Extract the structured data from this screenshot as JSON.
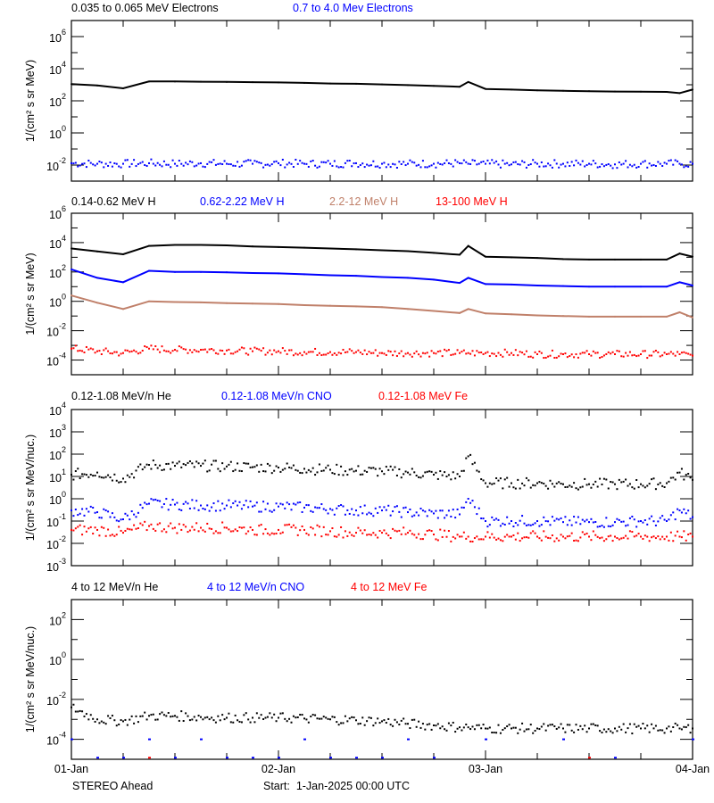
{
  "colors": {
    "black": "#000000",
    "blue": "#0000ff",
    "brown": "#c0806a",
    "red": "#ff0000"
  },
  "footer": {
    "spacecraft": "STEREO Ahead",
    "start": "Start:  1-Jan-2025 00:00 UTC"
  },
  "x_tick_labels": [
    "01-Jan",
    "02-Jan",
    "03-Jan",
    "04-Jan"
  ],
  "chart_data": [
    {
      "type": "line",
      "ylabel": "1/(cm² s sr MeV)",
      "yscale": "log",
      "ylim": [
        0.001,
        10000000.0
      ],
      "ytick_exponents": [
        6,
        4,
        2,
        0,
        -2
      ],
      "x": [
        "01-Jan 00:00",
        "01-Jan 03:00",
        "01-Jan 06:00",
        "01-Jan 09:00",
        "01-Jan 12:00",
        "01-Jan 15:00",
        "01-Jan 18:00",
        "01-Jan 21:00",
        "02-Jan 00:00",
        "02-Jan 03:00",
        "02-Jan 06:00",
        "02-Jan 09:00",
        "02-Jan 12:00",
        "02-Jan 15:00",
        "02-Jan 18:00",
        "02-Jan 21:00",
        "02-Jan 22:00",
        "03-Jan 00:00",
        "03-Jan 03:00",
        "03-Jan 06:00",
        "03-Jan 09:00",
        "03-Jan 12:00",
        "03-Jan 15:00",
        "03-Jan 18:00",
        "03-Jan 21:00",
        "03-Jan 22:30",
        "04-Jan 00:00"
      ],
      "series": [
        {
          "name": "0.035 to 0.065 MeV Electrons",
          "color": "black",
          "style": "line",
          "values": [
            1100,
            900,
            600,
            1600,
            1600,
            1550,
            1500,
            1450,
            1400,
            1300,
            1200,
            1150,
            1050,
            950,
            850,
            750,
            1500,
            550,
            500,
            450,
            420,
            400,
            380,
            370,
            360,
            300,
            500
          ]
        },
        {
          "name": "0.7 to 4.0 Mev Electrons",
          "color": "blue",
          "style": "dots",
          "values": [
            0.013,
            0.012,
            0.012,
            0.013,
            0.012,
            0.013,
            0.012,
            0.012,
            0.013,
            0.012,
            0.012,
            0.013,
            0.012,
            0.012,
            0.012,
            0.013,
            0.012,
            0.012,
            0.011,
            0.012,
            0.012,
            0.012,
            0.011,
            0.012,
            0.012,
            0.012,
            0.012
          ]
        }
      ]
    },
    {
      "type": "line",
      "ylabel": "1/(cm² s sr MeV)",
      "yscale": "log",
      "ylim": [
        1e-05,
        1000000.0
      ],
      "ytick_exponents": [
        6,
        4,
        2,
        0,
        -2,
        -4
      ],
      "x": [
        "01-Jan 00:00",
        "01-Jan 03:00",
        "01-Jan 06:00",
        "01-Jan 09:00",
        "01-Jan 12:00",
        "01-Jan 15:00",
        "01-Jan 18:00",
        "01-Jan 21:00",
        "02-Jan 00:00",
        "02-Jan 03:00",
        "02-Jan 06:00",
        "02-Jan 09:00",
        "02-Jan 12:00",
        "02-Jan 15:00",
        "02-Jan 18:00",
        "02-Jan 21:00",
        "02-Jan 22:00",
        "03-Jan 00:00",
        "03-Jan 03:00",
        "03-Jan 06:00",
        "03-Jan 09:00",
        "03-Jan 12:00",
        "03-Jan 15:00",
        "03-Jan 18:00",
        "03-Jan 21:00",
        "03-Jan 22:30",
        "04-Jan 00:00"
      ],
      "series": [
        {
          "name": "0.14-0.62 MeV H",
          "color": "black",
          "style": "line",
          "values": [
            4000,
            2500,
            1600,
            6000,
            7000,
            7000,
            6500,
            5500,
            5000,
            4500,
            4000,
            3500,
            3000,
            2600,
            2000,
            1500,
            6000,
            1100,
            1000,
            900,
            750,
            700,
            700,
            700,
            700,
            1800,
            1100
          ]
        },
        {
          "name": "0.62-2.22 MeV H",
          "color": "blue",
          "style": "line",
          "values": [
            150,
            40,
            20,
            120,
            100,
            100,
            95,
            85,
            80,
            70,
            60,
            55,
            45,
            40,
            30,
            18,
            40,
            15,
            14,
            12,
            11,
            10,
            10,
            10,
            10,
            20,
            12
          ]
        },
        {
          "name": "2.2-12 MeV H",
          "color": "brown",
          "style": "line",
          "values": [
            2.5,
            0.8,
            0.3,
            1.0,
            0.9,
            0.85,
            0.75,
            0.7,
            0.65,
            0.55,
            0.5,
            0.45,
            0.4,
            0.3,
            0.22,
            0.16,
            0.3,
            0.15,
            0.13,
            0.11,
            0.1,
            0.09,
            0.09,
            0.09,
            0.09,
            0.18,
            0.08
          ]
        },
        {
          "name": "13-100 MeV H",
          "color": "red",
          "style": "dots",
          "values": [
            0.0006,
            0.0004,
            0.0003,
            0.0006,
            0.0005,
            0.0005,
            0.00045,
            0.0004,
            0.0004,
            0.00035,
            0.00035,
            0.00035,
            0.0003,
            0.0003,
            0.0003,
            0.0003,
            0.0003,
            0.0003,
            0.0003,
            0.00025,
            0.00025,
            0.00025,
            0.00025,
            0.00025,
            0.00025,
            0.00025,
            0.0002
          ]
        }
      ]
    },
    {
      "type": "scatter",
      "ylabel": "1/(cm² s sr MeV/nuc.)",
      "yscale": "log",
      "ylim": [
        0.001,
        10000.0
      ],
      "ytick_exponents": [
        4,
        3,
        2,
        1,
        0,
        -1,
        -2,
        -3
      ],
      "x": [
        "01-Jan 00:00",
        "01-Jan 03:00",
        "01-Jan 06:00",
        "01-Jan 09:00",
        "01-Jan 12:00",
        "01-Jan 15:00",
        "01-Jan 18:00",
        "01-Jan 21:00",
        "02-Jan 00:00",
        "02-Jan 03:00",
        "02-Jan 06:00",
        "02-Jan 09:00",
        "02-Jan 12:00",
        "02-Jan 15:00",
        "02-Jan 18:00",
        "02-Jan 21:00",
        "02-Jan 22:00",
        "03-Jan 00:00",
        "03-Jan 03:00",
        "03-Jan 06:00",
        "03-Jan 09:00",
        "03-Jan 12:00",
        "03-Jan 15:00",
        "03-Jan 18:00",
        "03-Jan 21:00",
        "03-Jan 22:30",
        "04-Jan 00:00"
      ],
      "series": [
        {
          "name": "0.12-1.08 MeV/n He",
          "color": "black",
          "style": "dots",
          "values": [
            12,
            15,
            8,
            33,
            30,
            30,
            28,
            26,
            25,
            22,
            20,
            18,
            17,
            15,
            12,
            10,
            80,
            5,
            5,
            5,
            4.5,
            4.5,
            4.5,
            4.5,
            5,
            15,
            7
          ]
        },
        {
          "name": "0.12-1.08 MeV/n CNO",
          "color": "blue",
          "style": "dots",
          "values": [
            0.3,
            0.25,
            0.12,
            0.6,
            0.55,
            0.5,
            0.5,
            0.45,
            0.45,
            0.4,
            0.35,
            0.3,
            0.3,
            0.25,
            0.22,
            0.2,
            1.0,
            0.1,
            0.1,
            0.1,
            0.09,
            0.09,
            0.09,
            0.1,
            0.1,
            0.3,
            0.15
          ]
        },
        {
          "name": "0.12-1.08 MeV Fe",
          "color": "red",
          "style": "dots",
          "values": [
            0.04,
            0.04,
            0.03,
            0.06,
            0.05,
            0.05,
            0.05,
            0.04,
            0.04,
            0.04,
            0.035,
            0.03,
            0.03,
            0.03,
            0.025,
            0.02,
            0.02,
            0.02,
            0.02,
            0.02,
            0.02,
            0.02,
            0.02,
            0.02,
            0.02,
            0.02,
            0.02
          ]
        }
      ]
    },
    {
      "type": "scatter",
      "ylabel": "1/(cm² s sr MeV/nuc.)",
      "yscale": "log",
      "ylim": [
        1e-05,
        1000.0
      ],
      "ytick_exponents": [
        2,
        0,
        -2,
        -4
      ],
      "x": [
        "01-Jan 00:00",
        "01-Jan 03:00",
        "01-Jan 06:00",
        "01-Jan 09:00",
        "01-Jan 12:00",
        "01-Jan 15:00",
        "01-Jan 18:00",
        "01-Jan 21:00",
        "02-Jan 00:00",
        "02-Jan 03:00",
        "02-Jan 06:00",
        "02-Jan 09:00",
        "02-Jan 12:00",
        "02-Jan 15:00",
        "02-Jan 18:00",
        "02-Jan 21:00",
        "02-Jan 22:00",
        "03-Jan 00:00",
        "03-Jan 03:00",
        "03-Jan 06:00",
        "03-Jan 09:00",
        "03-Jan 12:00",
        "03-Jan 15:00",
        "03-Jan 18:00",
        "03-Jan 21:00",
        "03-Jan 22:30",
        "04-Jan 00:00"
      ],
      "series": [
        {
          "name": "4 to 12 MeV/n He",
          "color": "black",
          "style": "dots",
          "values": [
            0.004,
            0.001,
            0.0008,
            0.0015,
            0.0015,
            0.0013,
            0.0012,
            0.0012,
            0.0012,
            0.0011,
            0.001,
            0.0009,
            0.0008,
            0.0006,
            0.0005,
            0.0004,
            0.0004,
            0.00035,
            0.00035,
            0.00035,
            0.00035,
            0.00035,
            0.00035,
            0.00035,
            0.00035,
            0.00035,
            0.00035
          ]
        },
        {
          "name": "4 to 12 MeV/n CNO",
          "color": "blue",
          "style": "sparse",
          "values": [
            0.0001,
            1.2e-05,
            1.2e-05,
            0.0001,
            1.2e-05,
            0.0001,
            1.2e-05,
            1.2e-05,
            1.2e-05,
            0.0001,
            1.2e-05,
            1.2e-05,
            1.2e-05,
            0.0001,
            1.2e-05,
            null,
            null,
            0.0001,
            null,
            null,
            0.0001,
            null,
            1.2e-05,
            null,
            null,
            null,
            0.0001
          ]
        },
        {
          "name": "4 to 12 MeV Fe",
          "color": "red",
          "style": "sparse",
          "values": [
            null,
            null,
            null,
            1.2e-05,
            null,
            null,
            null,
            null,
            null,
            null,
            null,
            null,
            null,
            null,
            null,
            null,
            null,
            null,
            null,
            null,
            null,
            1.2e-05,
            null,
            null,
            null,
            null,
            null
          ]
        }
      ]
    }
  ]
}
